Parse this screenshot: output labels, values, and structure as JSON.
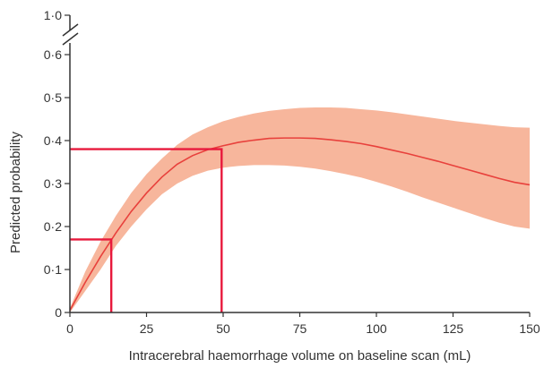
{
  "chart_data": {
    "type": "line",
    "title": "",
    "xlabel": "Intracerebral haemorrhage volume on baseline scan (mL)",
    "ylabel": "Predicted probability",
    "xlim": [
      0,
      150
    ],
    "ylim": [
      0,
      0.6
    ],
    "y_axis_break": {
      "lower": 0.6,
      "upper": 1.0,
      "upper_label": "1·0"
    },
    "x_ticks": [
      {
        "value": 0,
        "label": "0"
      },
      {
        "value": 25,
        "label": "25"
      },
      {
        "value": 50,
        "label": "50"
      },
      {
        "value": 75,
        "label": "75"
      },
      {
        "value": 100,
        "label": "100"
      },
      {
        "value": 125,
        "label": "125"
      },
      {
        "value": 150,
        "label": "150"
      }
    ],
    "y_ticks": [
      {
        "value": 0,
        "label": "0"
      },
      {
        "value": 0.1,
        "label": "0·1"
      },
      {
        "value": 0.2,
        "label": "0·2"
      },
      {
        "value": 0.3,
        "label": "0·3"
      },
      {
        "value": 0.4,
        "label": "0·4"
      },
      {
        "value": 0.5,
        "label": "0·5"
      },
      {
        "value": 0.6,
        "label": "0·6"
      }
    ],
    "grid": false,
    "line_color": "#e8413c",
    "band_color": "#f7b69c",
    "highlight_color": "#e8193c",
    "x": [
      0,
      5,
      10,
      15,
      20,
      25,
      30,
      35,
      40,
      45,
      50,
      55,
      60,
      65,
      70,
      75,
      80,
      85,
      90,
      95,
      100,
      105,
      110,
      115,
      120,
      125,
      130,
      135,
      140,
      145,
      150
    ],
    "series": [
      {
        "values": [
          0.005,
          0.07,
          0.13,
          0.185,
          0.235,
          0.278,
          0.315,
          0.345,
          0.365,
          0.379,
          0.388,
          0.396,
          0.401,
          0.405,
          0.406,
          0.406,
          0.405,
          0.402,
          0.398,
          0.393,
          0.386,
          0.378,
          0.37,
          0.361,
          0.352,
          0.342,
          0.332,
          0.322,
          0.312,
          0.303,
          0.297
        ],
        "lower": [
          0.0,
          0.05,
          0.1,
          0.155,
          0.2,
          0.24,
          0.275,
          0.3,
          0.318,
          0.33,
          0.337,
          0.341,
          0.343,
          0.343,
          0.342,
          0.339,
          0.335,
          0.329,
          0.322,
          0.314,
          0.304,
          0.293,
          0.281,
          0.268,
          0.256,
          0.244,
          0.232,
          0.22,
          0.209,
          0.2,
          0.195
        ],
        "upper": [
          0.01,
          0.095,
          0.165,
          0.225,
          0.278,
          0.322,
          0.358,
          0.39,
          0.414,
          0.431,
          0.445,
          0.455,
          0.463,
          0.469,
          0.473,
          0.476,
          0.477,
          0.477,
          0.476,
          0.473,
          0.47,
          0.466,
          0.461,
          0.456,
          0.451,
          0.446,
          0.442,
          0.438,
          0.434,
          0.431,
          0.43
        ]
      }
    ],
    "highlights": [
      {
        "x": 13.5,
        "y": 0.17
      },
      {
        "x": 49.5,
        "y": 0.38
      }
    ]
  }
}
